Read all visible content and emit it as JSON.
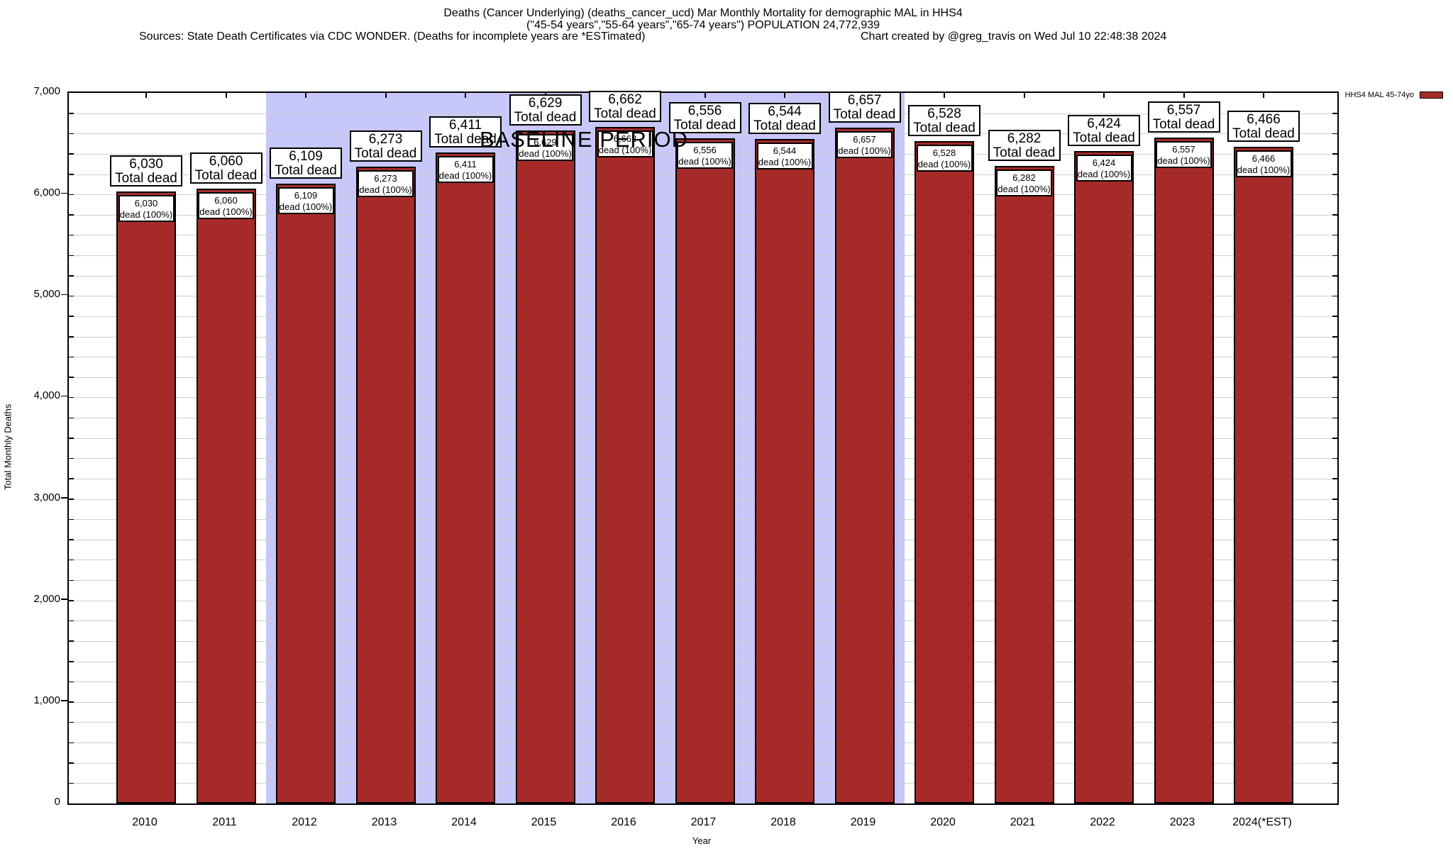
{
  "header": {
    "title_line1": "Deaths (Cancer Underlying) (deaths_cancer_ucd) Mar Monthly Mortality for demographic MAL in HHS4",
    "title_line2": "(\"45-54 years\",\"55-64 years\",\"65-74 years\") POPULATION 24,772,939",
    "sources_line": "Sources: State Death Certificates via CDC WONDER. (Deaths for incomplete years are *ESTimated)",
    "credit_line": "Chart created by @greg_travis on Wed Jul 10 22:48:38 2024"
  },
  "legend": {
    "label": "HHS4 MAL 45-74yo",
    "swatch_color": "#A62B28"
  },
  "chart_data": {
    "type": "bar",
    "title": "Deaths (Cancer Underlying) (deaths_cancer_ucd) Mar Monthly Mortality for demographic MAL in HHS4",
    "subtitle": "(\"45-54 years\",\"55-64 years\",\"65-74 years\") POPULATION 24,772,939",
    "xlabel": "Year",
    "ylabel": "Total Monthly Deaths",
    "ylim": [
      0,
      7000
    ],
    "ytick_interval": 1000,
    "minor_grid_interval": 200,
    "grid": true,
    "legend_position": "top-right",
    "categories": [
      "2010",
      "2011",
      "2012",
      "2013",
      "2014",
      "2015",
      "2016",
      "2017",
      "2018",
      "2019",
      "2020",
      "2021",
      "2022",
      "2023",
      "2024(*EST)"
    ],
    "series": [
      {
        "name": "HHS4 MAL 45-74yo",
        "values": [
          6030,
          6060,
          6109,
          6273,
          6411,
          6629,
          6662,
          6556,
          6544,
          6657,
          6528,
          6282,
          6424,
          6557,
          6466
        ],
        "values_formatted": [
          "6,030",
          "6,060",
          "6,109",
          "6,273",
          "6,411",
          "6,629",
          "6,662",
          "6,556",
          "6,544",
          "6,657",
          "6,528",
          "6,282",
          "6,424",
          "6,557",
          "6,466"
        ],
        "color": "#A62B28"
      }
    ],
    "ytick_labels": [
      "0",
      "1,000",
      "2,000",
      "3,000",
      "4,000",
      "5,000",
      "6,000",
      "7,000"
    ],
    "bar_outer_label_suffix": "Total dead",
    "bar_inner_label_suffix": "dead (100%)",
    "annotations": {
      "baseline_band": {
        "label": "BASELINE PERIOD",
        "from_category": "2012",
        "to_category": "2019",
        "color": "#C7C7FA"
      }
    }
  }
}
